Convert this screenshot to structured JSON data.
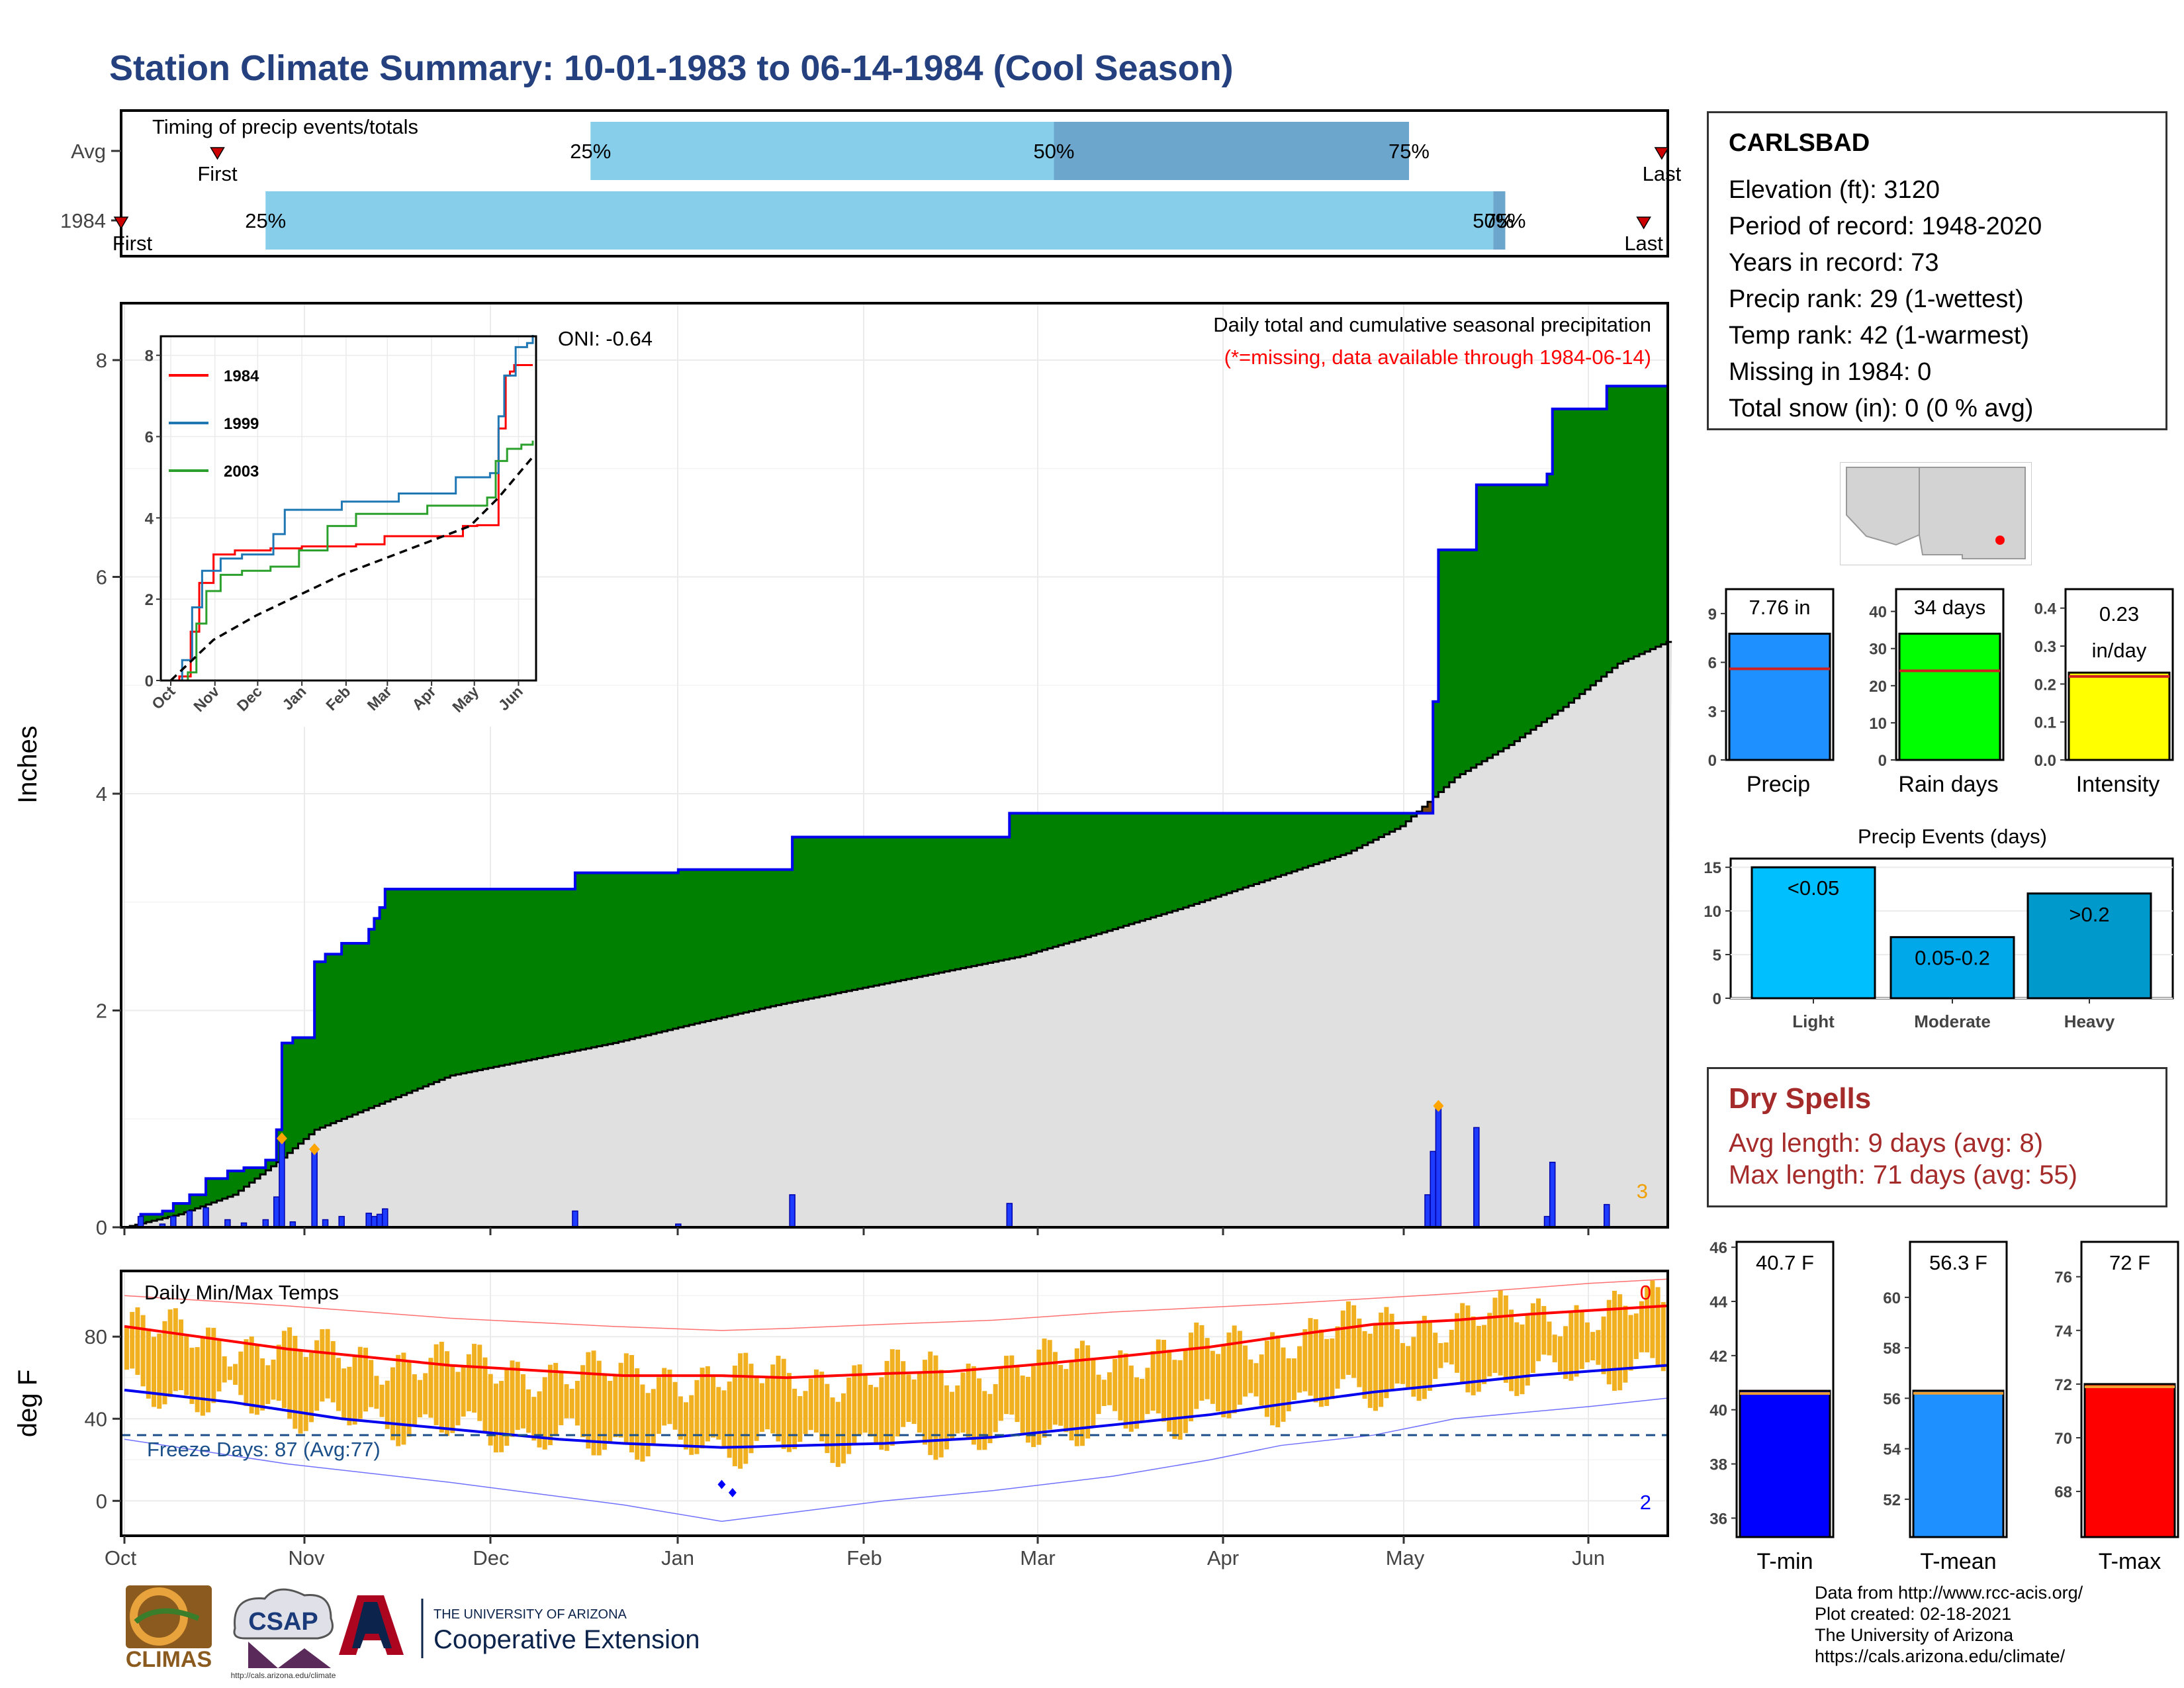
{
  "title": "Station Climate Summary: 10-01-1983 to 06-14-1984 (Cool Season)",
  "timing_panel": {
    "label": "Timing of precip events/totals",
    "rows": [
      {
        "name": "Avg",
        "first_label": "First",
        "last_label": "Last",
        "p25": "25%",
        "p50": "50%",
        "p75": "75%",
        "first_day": 16,
        "p25_day": 78,
        "p50_day": 155,
        "p75_day": 214,
        "last_day": 256
      },
      {
        "name": "1984",
        "first_label": "First",
        "last_label": "Last",
        "p25": "25%",
        "p50": "50%",
        "p75": "75%",
        "first_day": 0,
        "p25_day": 24,
        "p50_day": 228,
        "p75_day": 230,
        "last_day": 253
      }
    ]
  },
  "station": {
    "name": "CARLSBAD",
    "lines": [
      "Elevation (ft): 3120",
      "Period of record: 1948-2020",
      "Years in record: 73",
      "Precip rank: 29 (1-wettest)",
      "Temp rank: 42 (1-warmest)",
      "Missing in 1984: 0",
      "Total snow (in): 0 (0 % avg)"
    ]
  },
  "dry_spells": {
    "title": "Dry Spells",
    "avg_length": "Avg length: 9 days (avg: 8)",
    "max_length": "Max length: 71 days (avg: 55)"
  },
  "credits": [
    "Data from http://www.rcc-acis.org/",
    "Plot created: 02-18-2021",
    "The University of Arizona",
    "https://cals.arizona.edu/climate/"
  ],
  "logos": {
    "climas": "CLIMAS",
    "csap": "CSAP",
    "csap_url": "http://cals.arizona.edu/climate",
    "ua_small": "THE UNIVERSITY OF ARIZONA",
    "ua_large": "Cooperative Extension"
  },
  "colors": {
    "title": "#24407e",
    "above_avg": "#008000",
    "below_avg": "#7a4a10",
    "avg_fill": "#e0e0e0",
    "daily_bar": "#1e3cff",
    "temp_bar": "#f0b020",
    "tmax_line": "#ff0000",
    "tmin_line": "#0000ee",
    "freeze_line": "#1a4f8a"
  },
  "chart_data": [
    {
      "type": "area",
      "title": "Daily total and cumulative seasonal precipitation",
      "subtitle": "(*=missing, data available through 1984-06-14)",
      "ylabel": "Inches",
      "ylim": [
        0,
        8.5
      ],
      "yticks": [
        0,
        2,
        4,
        6,
        8
      ],
      "x_tick_labels": [
        "Oct",
        "Nov",
        "Dec",
        "Jan",
        "Feb",
        "Mar",
        "Apr",
        "May",
        "Jun"
      ],
      "oni": "ONI: -0.64",
      "corner_count": "3",
      "cumulative_1984": [
        [
          0,
          0
        ],
        [
          3,
          0.12
        ],
        [
          7,
          0.15
        ],
        [
          9,
          0.22
        ],
        [
          12,
          0.3
        ],
        [
          15,
          0.45
        ],
        [
          19,
          0.52
        ],
        [
          22,
          0.55
        ],
        [
          26,
          0.62
        ],
        [
          28,
          0.9
        ],
        [
          29,
          1.7
        ],
        [
          31,
          1.75
        ],
        [
          33,
          1.75
        ],
        [
          35,
          2.45
        ],
        [
          37,
          2.52
        ],
        [
          40,
          2.62
        ],
        [
          44,
          2.62
        ],
        [
          45,
          2.75
        ],
        [
          46,
          2.85
        ],
        [
          47,
          2.95
        ],
        [
          48,
          3.12
        ],
        [
          62,
          3.12
        ],
        [
          82,
          3.12
        ],
        [
          83,
          3.27
        ],
        [
          97,
          3.27
        ],
        [
          102,
          3.3
        ],
        [
          122,
          3.3
        ],
        [
          123,
          3.6
        ],
        [
          162,
          3.6
        ],
        [
          163,
          3.82
        ],
        [
          217,
          3.82
        ],
        [
          240,
          3.82
        ],
        [
          241,
          4.85
        ],
        [
          242,
          6.25
        ],
        [
          248,
          6.25
        ],
        [
          249,
          6.85
        ],
        [
          259,
          6.85
        ],
        [
          262,
          6.95
        ],
        [
          263,
          7.55
        ],
        [
          270,
          7.55
        ],
        [
          272,
          7.55
        ],
        [
          273,
          7.76
        ],
        [
          284,
          7.76
        ]
      ],
      "cumulative_avg": [
        [
          0,
          0
        ],
        [
          10,
          0.12
        ],
        [
          20,
          0.3
        ],
        [
          28,
          0.6
        ],
        [
          35,
          0.9
        ],
        [
          45,
          1.1
        ],
        [
          60,
          1.4
        ],
        [
          75,
          1.55
        ],
        [
          90,
          1.7
        ],
        [
          105,
          1.88
        ],
        [
          120,
          2.05
        ],
        [
          135,
          2.2
        ],
        [
          150,
          2.35
        ],
        [
          165,
          2.5
        ],
        [
          180,
          2.72
        ],
        [
          195,
          2.95
        ],
        [
          210,
          3.2
        ],
        [
          225,
          3.45
        ],
        [
          235,
          3.7
        ],
        [
          245,
          4.15
        ],
        [
          255,
          4.45
        ],
        [
          265,
          4.8
        ],
        [
          275,
          5.2
        ],
        [
          284,
          5.4
        ]
      ],
      "daily_precip": [
        [
          3,
          0.1
        ],
        [
          7,
          0.03
        ],
        [
          9,
          0.1
        ],
        [
          12,
          0.15
        ],
        [
          15,
          0.18
        ],
        [
          19,
          0.07
        ],
        [
          22,
          0.04
        ],
        [
          26,
          0.07
        ],
        [
          28,
          0.28
        ],
        [
          29,
          0.8
        ],
        [
          31,
          0.05
        ],
        [
          35,
          0.7
        ],
        [
          37,
          0.07
        ],
        [
          40,
          0.1
        ],
        [
          45,
          0.13
        ],
        [
          46,
          0.1
        ],
        [
          47,
          0.12
        ],
        [
          48,
          0.17
        ],
        [
          83,
          0.15
        ],
        [
          102,
          0.03
        ],
        [
          123,
          0.3
        ],
        [
          163,
          0.22
        ],
        [
          240,
          0.3
        ],
        [
          241,
          0.7
        ],
        [
          242,
          1.1
        ],
        [
          249,
          0.92
        ],
        [
          262,
          0.1
        ],
        [
          263,
          0.6
        ],
        [
          273,
          0.21
        ]
      ],
      "daily_markers": [
        [
          29,
          0.82
        ],
        [
          35,
          0.72
        ],
        [
          242,
          1.12
        ]
      ]
    },
    {
      "type": "line",
      "title": "",
      "series": [
        {
          "name": "1984",
          "color": "#ff0000",
          "points": [
            [
              0,
              0
            ],
            [
              6,
              0.1
            ],
            [
              14,
              1.2
            ],
            [
              20,
              2.4
            ],
            [
              30,
              3.1
            ],
            [
              45,
              3.2
            ],
            [
              70,
              3.25
            ],
            [
              92,
              3.3
            ],
            [
              110,
              3.3
            ],
            [
              130,
              3.35
            ],
            [
              150,
              3.55
            ],
            [
              180,
              3.55
            ],
            [
              205,
              3.8
            ],
            [
              215,
              3.82
            ],
            [
              226,
              3.82
            ],
            [
              230,
              6.2
            ],
            [
              235,
              7.5
            ],
            [
              238,
              7.6
            ],
            [
              241,
              7.76
            ],
            [
              254,
              7.76
            ]
          ]
        },
        {
          "name": "1999",
          "color": "#1f77b4",
          "points": [
            [
              0,
              0
            ],
            [
              8,
              0.5
            ],
            [
              15,
              1.8
            ],
            [
              22,
              2.7
            ],
            [
              35,
              3.0
            ],
            [
              50,
              3.1
            ],
            [
              72,
              3.6
            ],
            [
              80,
              4.2
            ],
            [
              120,
              4.4
            ],
            [
              160,
              4.6
            ],
            [
              200,
              5.0
            ],
            [
              224,
              5.1
            ],
            [
              230,
              6.5
            ],
            [
              234,
              7.5
            ],
            [
              242,
              8.2
            ],
            [
              250,
              8.3
            ],
            [
              254,
              8.5
            ]
          ]
        },
        {
          "name": "2003",
          "color": "#2ca02c",
          "points": [
            [
              0,
              0
            ],
            [
              12,
              0.2
            ],
            [
              18,
              1.4
            ],
            [
              25,
              2.2
            ],
            [
              35,
              2.6
            ],
            [
              50,
              2.7
            ],
            [
              70,
              2.8
            ],
            [
              90,
              3.2
            ],
            [
              110,
              3.8
            ],
            [
              130,
              4.1
            ],
            [
              180,
              4.3
            ],
            [
              222,
              4.5
            ],
            [
              228,
              5.4
            ],
            [
              236,
              5.7
            ],
            [
              246,
              5.8
            ],
            [
              254,
              5.9
            ]
          ]
        },
        {
          "name": "avg",
          "color": "#000000",
          "dashed": true,
          "points": [
            [
              0,
              0
            ],
            [
              30,
              1.0
            ],
            [
              60,
              1.6
            ],
            [
              90,
              2.1
            ],
            [
              120,
              2.6
            ],
            [
              150,
              3.0
            ],
            [
              180,
              3.4
            ],
            [
              210,
              3.8
            ],
            [
              230,
              4.5
            ],
            [
              254,
              5.5
            ]
          ]
        }
      ],
      "ylim": [
        0,
        8.5
      ],
      "yticks": [
        0,
        2,
        4,
        6,
        8
      ],
      "x_tick_labels": [
        "Oct",
        "Nov",
        "Dec",
        "Jan",
        "Feb",
        "Mar",
        "Apr",
        "May",
        "Jun"
      ]
    },
    {
      "type": "bar",
      "title": "Daily Min/Max Temps",
      "ylabel": "deg F",
      "ylim": [
        -17,
        112
      ],
      "yticks": [
        0,
        40,
        80
      ],
      "x_tick_labels": [
        "Oct",
        "Nov",
        "Dec",
        "Jan",
        "Feb",
        "Mar",
        "Apr",
        "May",
        "Jun"
      ],
      "freeze_label": "Freeze Days: 87 (Avg:77)",
      "freeze_threshold": 32,
      "top_count": "0",
      "bottom_count": "2",
      "avg_tmax": [
        [
          0,
          85
        ],
        [
          30,
          74
        ],
        [
          60,
          66
        ],
        [
          92,
          61
        ],
        [
          110,
          61
        ],
        [
          122,
          60
        ],
        [
          140,
          62
        ],
        [
          152,
          63
        ],
        [
          166,
          66
        ],
        [
          182,
          70
        ],
        [
          200,
          75
        ],
        [
          213,
          80
        ],
        [
          230,
          86
        ],
        [
          245,
          88
        ],
        [
          259,
          91
        ],
        [
          284,
          95
        ]
      ],
      "avg_tmin": [
        [
          0,
          54
        ],
        [
          20,
          48
        ],
        [
          40,
          40
        ],
        [
          60,
          35
        ],
        [
          80,
          30
        ],
        [
          92,
          28
        ],
        [
          110,
          26
        ],
        [
          125,
          27
        ],
        [
          140,
          28
        ],
        [
          160,
          31
        ],
        [
          182,
          37
        ],
        [
          200,
          42
        ],
        [
          213,
          47
        ],
        [
          230,
          53
        ],
        [
          245,
          57
        ],
        [
          259,
          61
        ],
        [
          284,
          66
        ]
      ],
      "record_high": [
        [
          0,
          100
        ],
        [
          30,
          95
        ],
        [
          60,
          89
        ],
        [
          90,
          85
        ],
        [
          110,
          83
        ],
        [
          122,
          84
        ],
        [
          140,
          86
        ],
        [
          160,
          88
        ],
        [
          182,
          92
        ],
        [
          213,
          96
        ],
        [
          245,
          101
        ],
        [
          270,
          106
        ],
        [
          284,
          108
        ]
      ],
      "record_low": [
        [
          0,
          30
        ],
        [
          30,
          18
        ],
        [
          60,
          9
        ],
        [
          92,
          -2
        ],
        [
          110,
          -10
        ],
        [
          122,
          -6
        ],
        [
          140,
          0
        ],
        [
          160,
          5
        ],
        [
          182,
          12
        ],
        [
          200,
          20
        ],
        [
          213,
          27
        ],
        [
          230,
          32
        ],
        [
          245,
          40
        ],
        [
          270,
          46
        ],
        [
          284,
          50
        ]
      ]
    },
    {
      "type": "bar",
      "title": "",
      "categories": [
        "Precip",
        "Rain days",
        "Intensity"
      ],
      "series": [
        {
          "name": "1984",
          "values": [
            7.76,
            34,
            0.23
          ]
        }
      ],
      "value_labels": [
        "7.76 in",
        "34 days",
        "0.23 in/day"
      ],
      "averages": [
        5.6,
        24,
        0.22
      ],
      "ylims": [
        [
          0,
          10.5
        ],
        [
          0,
          46
        ],
        [
          0,
          0.45
        ]
      ],
      "yticks": [
        [
          0,
          3,
          6,
          9
        ],
        [
          0,
          10,
          20,
          30,
          40
        ],
        [
          0.0,
          0.1,
          0.2,
          0.3,
          0.4
        ]
      ],
      "colors": [
        "#1e90ff",
        "#00ff00",
        "#ffff00"
      ]
    },
    {
      "type": "bar",
      "title": "Precip Events (days)",
      "categories": [
        "Light",
        "Moderate",
        "Heavy"
      ],
      "values": [
        15,
        7,
        12
      ],
      "bar_labels": [
        "<0.05",
        "0.05-0.2",
        ">0.2"
      ],
      "ylim": [
        0,
        16
      ],
      "yticks": [
        0,
        5,
        10,
        15
      ],
      "colors": [
        "#00bfff",
        "#00a8ea",
        "#0099cc"
      ]
    },
    {
      "type": "bar",
      "title": "",
      "categories": [
        "T-min",
        "T-mean",
        "T-max"
      ],
      "values": [
        40.7,
        56.3,
        72
      ],
      "value_labels": [
        "40.7 F",
        "56.3 F",
        "72 F"
      ],
      "averages": [
        40.6,
        56.2,
        71.9
      ],
      "ylims": [
        [
          35.3,
          46.2
        ],
        [
          50.5,
          62.2
        ],
        [
          66.3,
          77.3
        ]
      ],
      "yticks": [
        [
          36,
          38,
          40,
          42,
          44,
          46
        ],
        [
          52,
          54,
          56,
          58,
          60
        ],
        [
          68,
          70,
          72,
          74,
          76
        ]
      ],
      "colors": [
        "#0000ff",
        "#1e90ff",
        "#ff0000"
      ]
    }
  ]
}
